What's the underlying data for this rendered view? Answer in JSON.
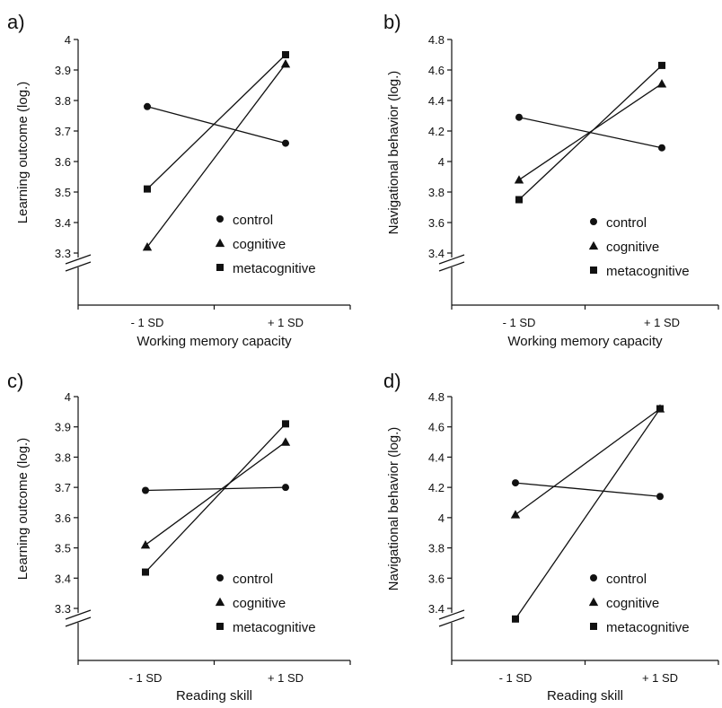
{
  "chart_data": [
    {
      "panel": "a)",
      "type": "line",
      "categories": [
        "- 1 SD",
        "+ 1 SD"
      ],
      "xlabel": "Working memory capacity",
      "ylabel": "Learning outcome (log.)",
      "ylim": [
        3.3,
        4.0
      ],
      "yticks": [
        3.3,
        3.4,
        3.5,
        3.6,
        3.7,
        3.8,
        3.9,
        4
      ],
      "ytick_labels": [
        "3.3",
        "3.4",
        "3.5",
        "3.6",
        "3.7",
        "3.8",
        "3.9",
        "4"
      ],
      "axis_break": true,
      "legend_position": "bottom-right",
      "series": [
        {
          "name": "control",
          "marker": "circle",
          "values": [
            3.78,
            3.66
          ]
        },
        {
          "name": "cognitive",
          "marker": "triangle",
          "values": [
            3.32,
            3.92
          ]
        },
        {
          "name": "metacognitive",
          "marker": "square",
          "values": [
            3.51,
            3.95
          ]
        }
      ]
    },
    {
      "panel": "b)",
      "type": "line",
      "categories": [
        "- 1 SD",
        "+ 1 SD"
      ],
      "xlabel": "Working memory capacity",
      "ylabel": "Navigational behavior (log.)",
      "ylim": [
        3.4,
        4.8
      ],
      "yticks": [
        3.4,
        3.6,
        3.8,
        4.0,
        4.2,
        4.4,
        4.6,
        4.8
      ],
      "ytick_labels": [
        "3.4",
        "3.6",
        "3.8",
        "4",
        "4.2",
        "4.4",
        "4.6",
        "4.8"
      ],
      "axis_break": true,
      "legend_position": "bottom-right",
      "series": [
        {
          "name": "control",
          "marker": "circle",
          "values": [
            4.29,
            4.09
          ]
        },
        {
          "name": "cognitive",
          "marker": "triangle",
          "values": [
            3.88,
            4.51
          ]
        },
        {
          "name": "metacognitive",
          "marker": "square",
          "values": [
            3.75,
            4.63
          ]
        }
      ]
    },
    {
      "panel": "c)",
      "type": "line",
      "categories": [
        "- 1 SD",
        "+ 1 SD"
      ],
      "xlabel": "Reading skill",
      "ylabel": "Learning outcome (log.)",
      "ylim": [
        3.3,
        4.0
      ],
      "yticks": [
        3.3,
        3.4,
        3.5,
        3.6,
        3.7,
        3.8,
        3.9,
        4
      ],
      "ytick_labels": [
        "3.3",
        "3.4",
        "3.5",
        "3.6",
        "3.7",
        "3.8",
        "3.9",
        "4"
      ],
      "axis_break": true,
      "legend_position": "bottom-right",
      "series": [
        {
          "name": "control",
          "marker": "circle",
          "values": [
            3.69,
            3.7
          ]
        },
        {
          "name": "cognitive",
          "marker": "triangle",
          "values": [
            3.51,
            3.85
          ]
        },
        {
          "name": "metacognitive",
          "marker": "square",
          "values": [
            3.42,
            3.91
          ]
        }
      ]
    },
    {
      "panel": "d)",
      "type": "line",
      "categories": [
        "- 1 SD",
        "+ 1 SD"
      ],
      "xlabel": "Reading skill",
      "ylabel": "Navigational behavior (log.)",
      "ylim": [
        3.4,
        4.8
      ],
      "yticks": [
        3.4,
        3.6,
        3.8,
        4.0,
        4.2,
        4.4,
        4.6,
        4.8
      ],
      "ytick_labels": [
        "3.4",
        "3.6",
        "3.8",
        "4",
        "4.2",
        "4.4",
        "4.6",
        "4.8"
      ],
      "axis_break": true,
      "legend_position": "bottom-right",
      "series": [
        {
          "name": "control",
          "marker": "circle",
          "values": [
            4.23,
            4.14
          ]
        },
        {
          "name": "cognitive",
          "marker": "triangle",
          "values": [
            4.02,
            4.72
          ]
        },
        {
          "name": "metacognitive",
          "marker": "square",
          "values": [
            3.33,
            4.72
          ]
        }
      ]
    }
  ]
}
